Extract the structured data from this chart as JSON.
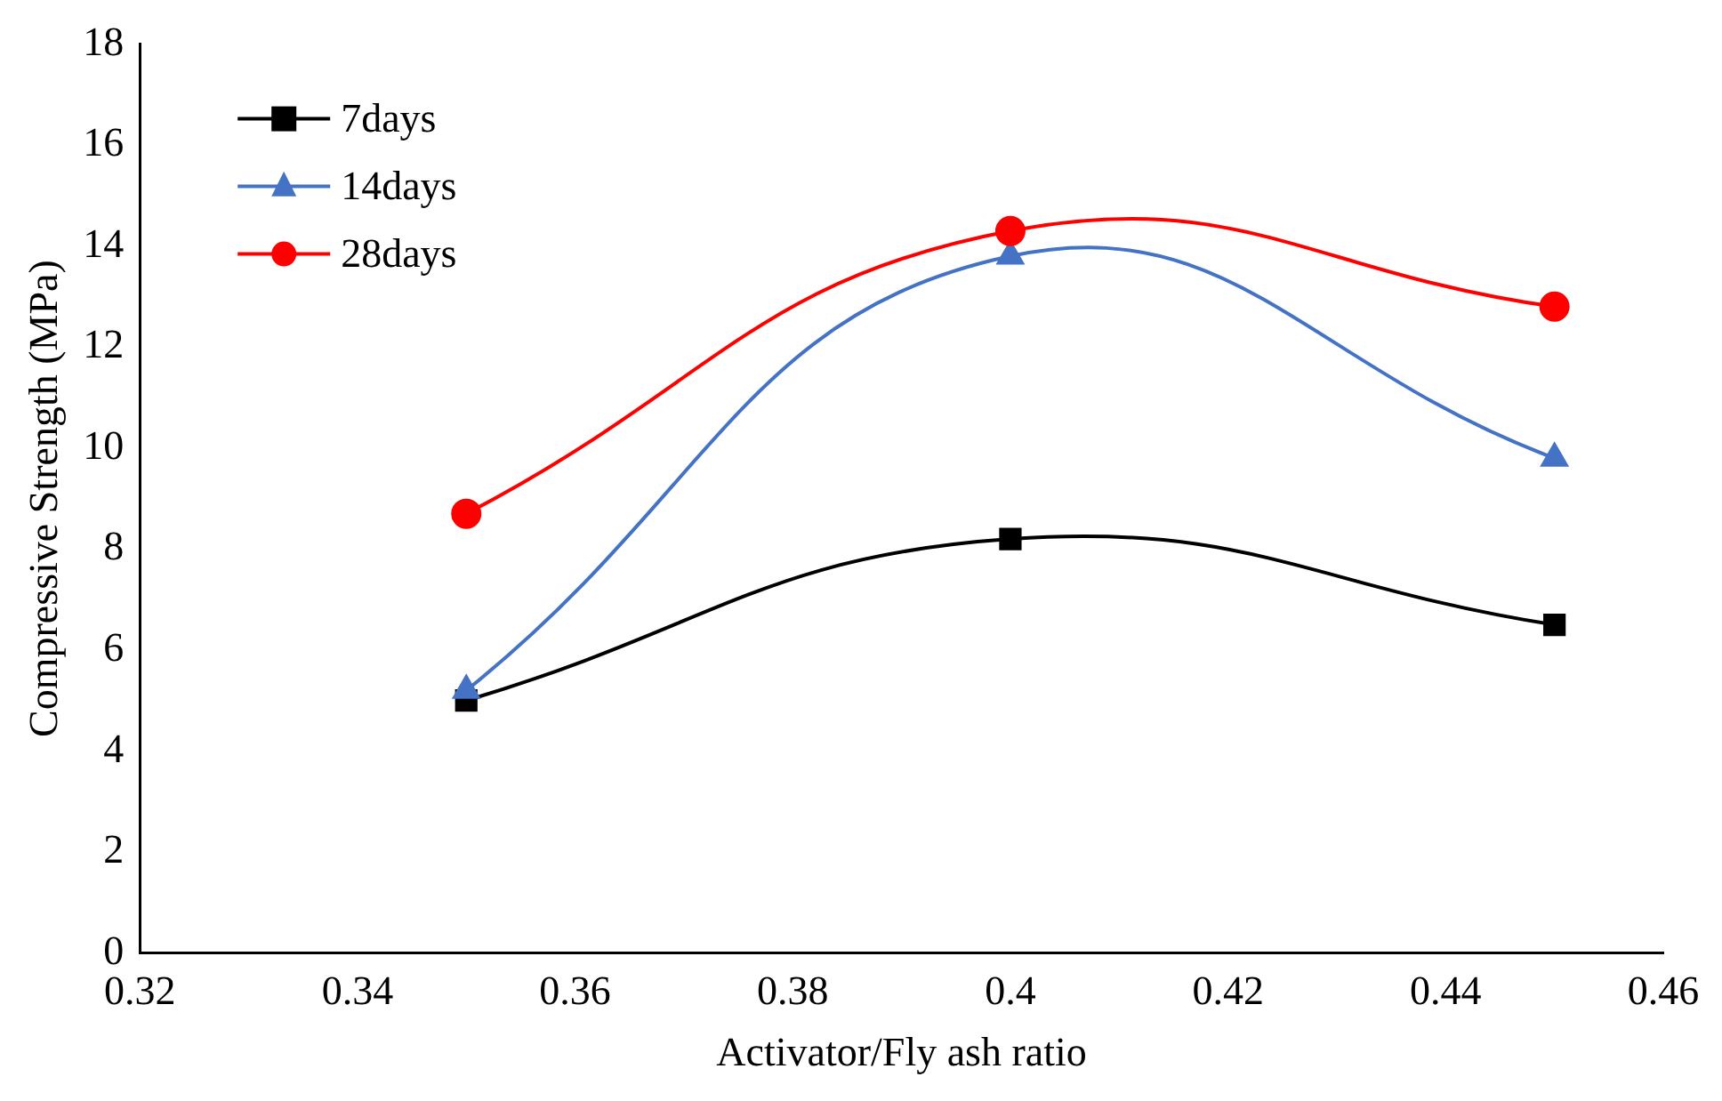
{
  "chart_data": {
    "type": "line",
    "xlabel": "Activator/Fly ash ratio",
    "ylabel": "Compressive Strength (MPa)",
    "x": [
      0.35,
      0.4,
      0.45
    ],
    "series": [
      {
        "name": "7days",
        "color": "#000000",
        "marker": "square",
        "values": [
          5.0,
          8.2,
          6.5
        ]
      },
      {
        "name": "14days",
        "color": "#4472c4",
        "marker": "triangle",
        "values": [
          5.2,
          13.8,
          9.8
        ]
      },
      {
        "name": "28days",
        "color": "#ff0000",
        "marker": "circle",
        "values": [
          8.7,
          14.3,
          12.8
        ]
      }
    ],
    "xlim": [
      0.32,
      0.46
    ],
    "xticks": [
      0.32,
      0.34,
      0.36,
      0.38,
      0.4,
      0.42,
      0.44,
      0.46
    ],
    "ylim": [
      0,
      18
    ],
    "yticks": [
      0,
      2,
      4,
      6,
      8,
      10,
      12,
      14,
      16,
      18
    ],
    "grid": false,
    "legend": "top left"
  }
}
